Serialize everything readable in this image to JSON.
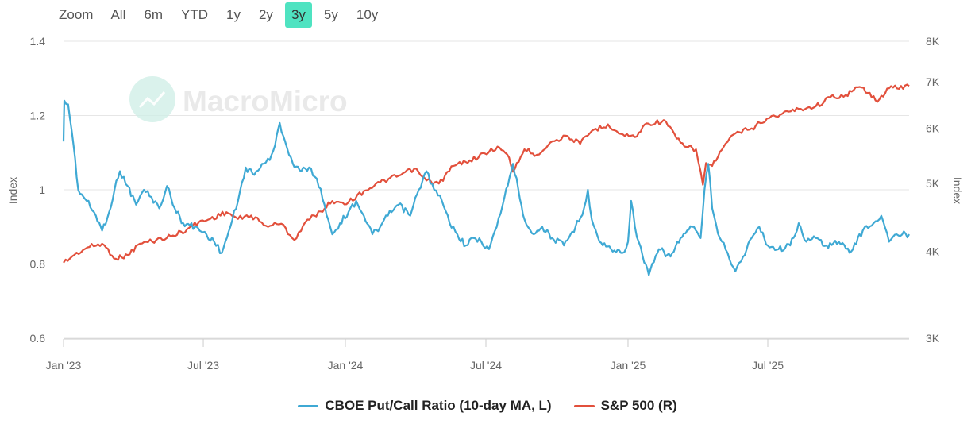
{
  "zoom": {
    "label": "Zoom",
    "buttons": [
      "All",
      "6m",
      "YTD",
      "1y",
      "2y",
      "3y",
      "5y",
      "10y"
    ],
    "active": "3y",
    "active_color": "#4fe3c1"
  },
  "watermark": "MacroMicro",
  "colors": {
    "left_series": "#3fa9d4",
    "right_series": "#e2503c",
    "grid": "#e6e6e6",
    "axis_text": "#666666"
  },
  "chart_data": {
    "type": "line",
    "title": "",
    "x_labels": [
      "Jan '23",
      "Jul '23",
      "Jan '24",
      "Jul '24",
      "Jan '25",
      "Jul '25"
    ],
    "x_range": [
      "2023-01-01",
      "2025-12-31"
    ],
    "left_axis": {
      "label": "Index",
      "ticks": [
        0.6,
        0.8,
        1,
        1.2,
        1.4
      ],
      "tick_labels": [
        "0.6",
        "0.8",
        "1",
        "1.2",
        "1.4"
      ],
      "range": [
        0.6,
        1.4
      ]
    },
    "right_axis": {
      "label": "Index",
      "scale": "log",
      "ticks": [
        3000,
        4000,
        5000,
        6000,
        7000,
        8000
      ],
      "tick_labels": [
        "3K",
        "4K",
        "5K",
        "6K",
        "7K",
        "8K"
      ],
      "range": [
        3000,
        8000
      ]
    },
    "series": [
      {
        "name": "CBOE Put/Call Ratio (10-day MA, L)",
        "axis": "left",
        "points": [
          [
            "2023-01-01",
            1.13
          ],
          [
            "2023-01-02",
            1.24
          ],
          [
            "2023-01-07",
            1.23
          ],
          [
            "2023-01-14",
            1.12
          ],
          [
            "2023-01-20",
            1.0
          ],
          [
            "2023-01-31",
            0.97
          ],
          [
            "2023-02-12",
            0.93
          ],
          [
            "2023-02-20",
            0.89
          ],
          [
            "2023-03-01",
            0.94
          ],
          [
            "2023-03-08",
            1.0
          ],
          [
            "2023-03-15",
            1.05
          ],
          [
            "2023-03-25",
            1.01
          ],
          [
            "2023-04-05",
            0.96
          ],
          [
            "2023-04-15",
            1.0
          ],
          [
            "2023-04-25",
            0.98
          ],
          [
            "2023-05-05",
            0.95
          ],
          [
            "2023-05-15",
            1.01
          ],
          [
            "2023-05-25",
            0.95
          ],
          [
            "2023-06-05",
            0.91
          ],
          [
            "2023-06-20",
            0.9
          ],
          [
            "2023-07-05",
            0.88
          ],
          [
            "2023-07-15",
            0.86
          ],
          [
            "2023-07-25",
            0.83
          ],
          [
            "2023-08-05",
            0.9
          ],
          [
            "2023-08-15",
            0.97
          ],
          [
            "2023-08-25",
            1.06
          ],
          [
            "2023-09-05",
            1.04
          ],
          [
            "2023-09-15",
            1.07
          ],
          [
            "2023-09-25",
            1.08
          ],
          [
            "2023-10-02",
            1.12
          ],
          [
            "2023-10-08",
            1.18
          ],
          [
            "2023-10-15",
            1.13
          ],
          [
            "2023-10-25",
            1.07
          ],
          [
            "2023-11-05",
            1.05
          ],
          [
            "2023-11-15",
            1.06
          ],
          [
            "2023-11-25",
            1.03
          ],
          [
            "2023-12-05",
            0.96
          ],
          [
            "2023-12-15",
            0.88
          ],
          [
            "2023-12-25",
            0.91
          ],
          [
            "2024-01-05",
            0.94
          ],
          [
            "2024-01-15",
            0.97
          ],
          [
            "2024-01-25",
            0.93
          ],
          [
            "2024-02-05",
            0.88
          ],
          [
            "2024-02-15",
            0.9
          ],
          [
            "2024-02-25",
            0.93
          ],
          [
            "2024-03-10",
            0.96
          ],
          [
            "2024-03-25",
            0.93
          ],
          [
            "2024-04-05",
            1.0
          ],
          [
            "2024-04-15",
            1.05
          ],
          [
            "2024-04-25",
            1.0
          ],
          [
            "2024-05-05",
            0.97
          ],
          [
            "2024-05-15",
            0.91
          ],
          [
            "2024-05-25",
            0.88
          ],
          [
            "2024-06-05",
            0.85
          ],
          [
            "2024-06-15",
            0.87
          ],
          [
            "2024-06-25",
            0.86
          ],
          [
            "2024-07-05",
            0.84
          ],
          [
            "2024-07-15",
            0.9
          ],
          [
            "2024-07-25",
            0.98
          ],
          [
            "2024-08-05",
            1.07
          ],
          [
            "2024-08-12",
            1.0
          ],
          [
            "2024-08-20",
            0.92
          ],
          [
            "2024-09-01",
            0.88
          ],
          [
            "2024-09-12",
            0.9
          ],
          [
            "2024-09-25",
            0.87
          ],
          [
            "2024-10-10",
            0.85
          ],
          [
            "2024-10-25",
            0.9
          ],
          [
            "2024-11-05",
            0.95
          ],
          [
            "2024-11-10",
            1.0
          ],
          [
            "2024-11-15",
            0.92
          ],
          [
            "2024-11-25",
            0.86
          ],
          [
            "2024-12-10",
            0.84
          ],
          [
            "2024-12-25",
            0.83
          ],
          [
            "2025-01-01",
            0.86
          ],
          [
            "2025-01-05",
            0.97
          ],
          [
            "2025-01-10",
            0.9
          ],
          [
            "2025-01-20",
            0.82
          ],
          [
            "2025-01-28",
            0.77
          ],
          [
            "2025-02-10",
            0.84
          ],
          [
            "2025-02-25",
            0.82
          ],
          [
            "2025-03-10",
            0.87
          ],
          [
            "2025-03-25",
            0.9
          ],
          [
            "2025-04-05",
            0.87
          ],
          [
            "2025-04-10",
            1.0
          ],
          [
            "2025-04-15",
            1.07
          ],
          [
            "2025-04-20",
            0.95
          ],
          [
            "2025-04-30",
            0.87
          ],
          [
            "2025-05-10",
            0.83
          ],
          [
            "2025-05-20",
            0.78
          ],
          [
            "2025-05-30",
            0.82
          ],
          [
            "2025-06-10",
            0.87
          ],
          [
            "2025-06-20",
            0.9
          ],
          [
            "2025-07-01",
            0.85
          ],
          [
            "2025-07-15",
            0.84
          ],
          [
            "2025-07-30",
            0.85
          ],
          [
            "2025-08-10",
            0.91
          ],
          [
            "2025-08-20",
            0.86
          ],
          [
            "2025-09-01",
            0.87
          ],
          [
            "2025-09-15",
            0.85
          ],
          [
            "2025-10-01",
            0.86
          ],
          [
            "2025-10-15",
            0.83
          ],
          [
            "2025-11-01",
            0.89
          ],
          [
            "2025-11-15",
            0.91
          ],
          [
            "2025-11-25",
            0.93
          ],
          [
            "2025-12-05",
            0.86
          ],
          [
            "2025-12-15",
            0.88
          ],
          [
            "2025-12-31",
            0.88
          ]
        ]
      },
      {
        "name": "S&P 500 (R)",
        "axis": "right",
        "points": [
          [
            "2023-01-01",
            3850
          ],
          [
            "2023-01-15",
            3950
          ],
          [
            "2023-02-01",
            4050
          ],
          [
            "2023-02-20",
            4100
          ],
          [
            "2023-03-10",
            3900
          ],
          [
            "2023-03-25",
            3950
          ],
          [
            "2023-04-10",
            4100
          ],
          [
            "2023-05-01",
            4150
          ],
          [
            "2023-05-20",
            4200
          ],
          [
            "2023-06-10",
            4300
          ],
          [
            "2023-06-25",
            4400
          ],
          [
            "2023-07-10",
            4450
          ],
          [
            "2023-07-31",
            4550
          ],
          [
            "2023-08-15",
            4450
          ],
          [
            "2023-09-01",
            4500
          ],
          [
            "2023-09-20",
            4350
          ],
          [
            "2023-10-10",
            4380
          ],
          [
            "2023-10-27",
            4150
          ],
          [
            "2023-11-10",
            4400
          ],
          [
            "2023-11-30",
            4560
          ],
          [
            "2023-12-15",
            4720
          ],
          [
            "2024-01-05",
            4700
          ],
          [
            "2024-01-25",
            4880
          ],
          [
            "2024-02-15",
            5020
          ],
          [
            "2024-03-10",
            5130
          ],
          [
            "2024-03-30",
            5250
          ],
          [
            "2024-04-15",
            5050
          ],
          [
            "2024-05-01",
            5000
          ],
          [
            "2024-05-20",
            5300
          ],
          [
            "2024-06-10",
            5400
          ],
          [
            "2024-07-05",
            5550
          ],
          [
            "2024-07-16",
            5650
          ],
          [
            "2024-07-31",
            5450
          ],
          [
            "2024-08-05",
            5200
          ],
          [
            "2024-08-20",
            5600
          ],
          [
            "2024-09-05",
            5500
          ],
          [
            "2024-09-25",
            5750
          ],
          [
            "2024-10-15",
            5850
          ],
          [
            "2024-10-31",
            5700
          ],
          [
            "2024-11-15",
            5950
          ],
          [
            "2024-12-06",
            6080
          ],
          [
            "2024-12-20",
            5900
          ],
          [
            "2025-01-10",
            5830
          ],
          [
            "2025-01-25",
            6100
          ],
          [
            "2025-02-19",
            6140
          ],
          [
            "2025-03-05",
            5800
          ],
          [
            "2025-03-15",
            5650
          ],
          [
            "2025-03-30",
            5600
          ],
          [
            "2025-04-08",
            4980
          ],
          [
            "2025-04-12",
            5350
          ],
          [
            "2025-04-20",
            5300
          ],
          [
            "2025-05-05",
            5650
          ],
          [
            "2025-05-20",
            5900
          ],
          [
            "2025-06-10",
            6000
          ],
          [
            "2025-06-30",
            6200
          ],
          [
            "2025-07-20",
            6300
          ],
          [
            "2025-08-10",
            6400
          ],
          [
            "2025-09-01",
            6450
          ],
          [
            "2025-09-20",
            6650
          ],
          [
            "2025-10-10",
            6700
          ],
          [
            "2025-10-28",
            6880
          ],
          [
            "2025-11-10",
            6750
          ],
          [
            "2025-11-20",
            6550
          ],
          [
            "2025-12-05",
            6850
          ],
          [
            "2025-12-31",
            6900
          ]
        ]
      }
    ]
  }
}
